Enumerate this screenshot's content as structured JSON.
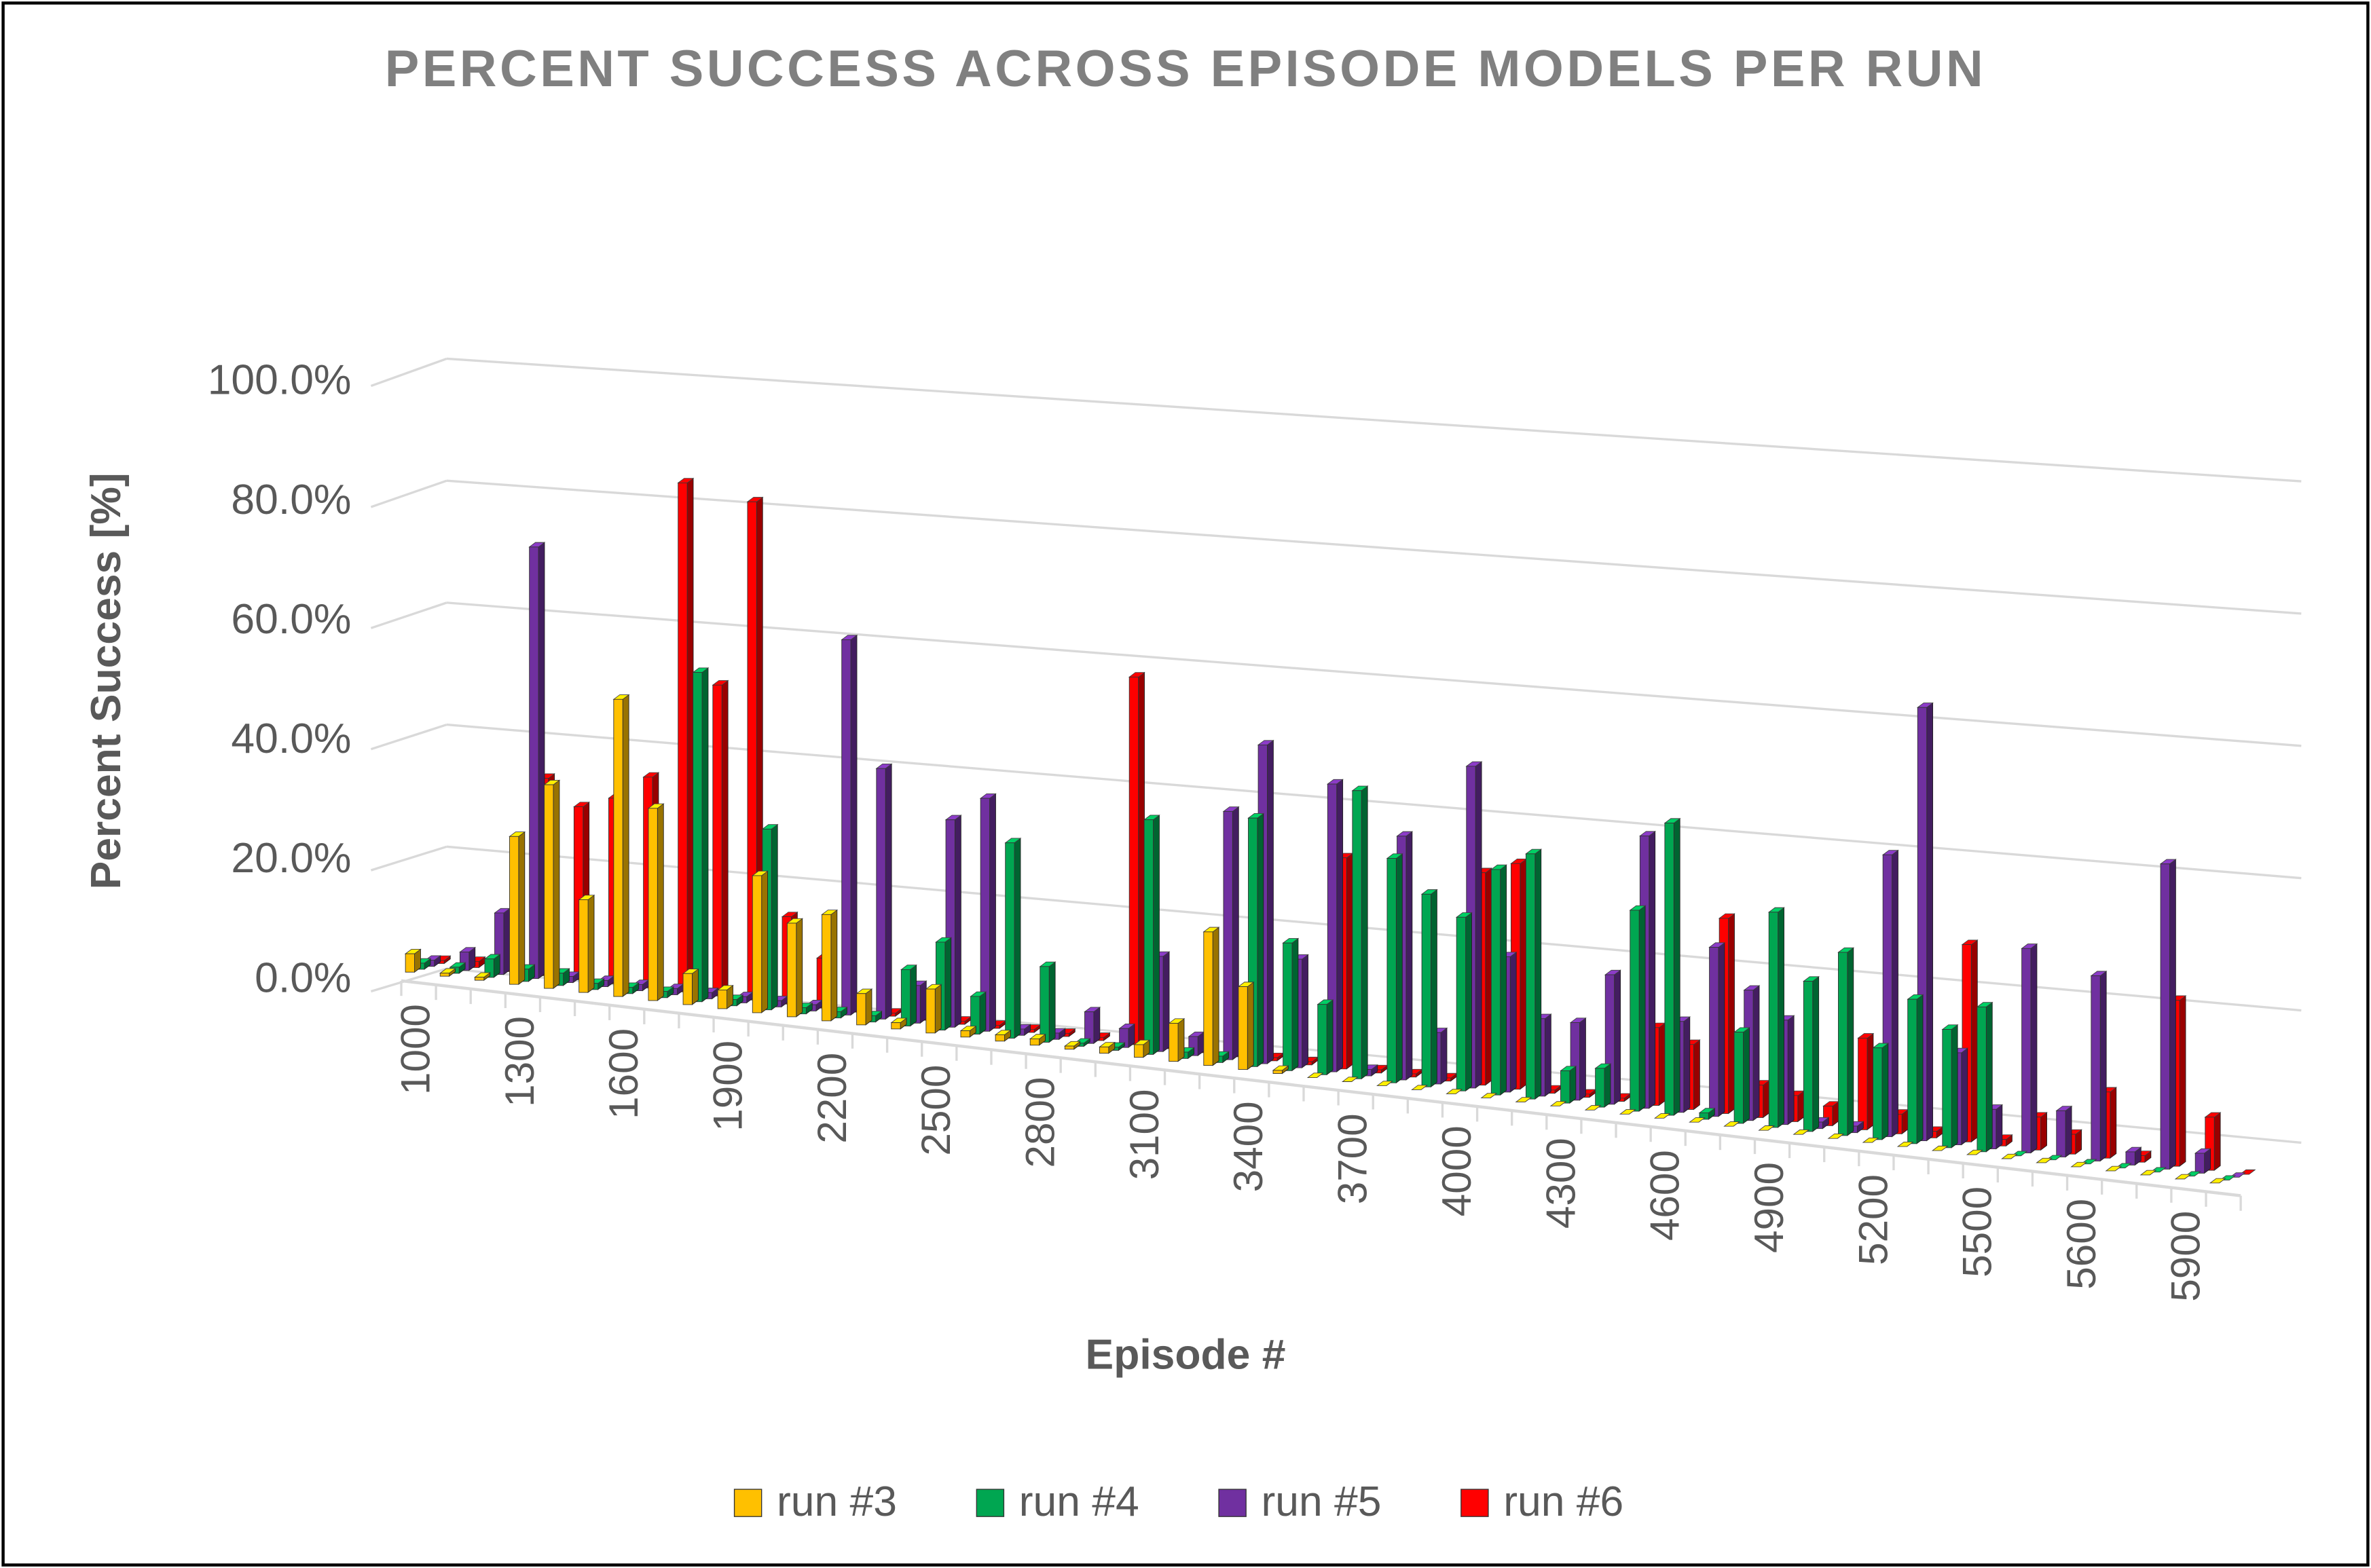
{
  "chart_data": {
    "type": "bar3d",
    "title": "PERCENT SUCCESS ACROSS EPISODE MODELS PER RUN",
    "x_label": "Episode #",
    "y_label": "Percent Success [%]",
    "categories": [
      "1000",
      null,
      null,
      "1300",
      null,
      null,
      "1600",
      null,
      null,
      "1900",
      null,
      null,
      "2200",
      null,
      null,
      "2500",
      null,
      null,
      "2800",
      null,
      null,
      "3100",
      null,
      null,
      "3400",
      null,
      null,
      "3700",
      null,
      null,
      "4000",
      null,
      null,
      "4300",
      null,
      null,
      "4600",
      null,
      null,
      "4900",
      null,
      null,
      "5200",
      null,
      null,
      "5500",
      null,
      null,
      "5600",
      null,
      null,
      "5900",
      null
    ],
    "series": [
      {
        "name": "run #3",
        "color": "#FFC000",
        "values": [
          3,
          0.5,
          0.5,
          24,
          33,
          15,
          48,
          31,
          5,
          3,
          22,
          15,
          17,
          5,
          1,
          7,
          1,
          1,
          1,
          0.5,
          1,
          2,
          6,
          21,
          13,
          0.5,
          0,
          0,
          0,
          0,
          0,
          0,
          0,
          0,
          0,
          0,
          0,
          0,
          0,
          0,
          0,
          0,
          0,
          0,
          0,
          0,
          0,
          0,
          0,
          0,
          0,
          0,
          0
        ]
      },
      {
        "name": "run #4",
        "color": "#00A651",
        "values": [
          1,
          1,
          3,
          2,
          2,
          1,
          1,
          1,
          53,
          1,
          29,
          1,
          1,
          1,
          9,
          14,
          6,
          31,
          12,
          0.5,
          0.5,
          37,
          1,
          1,
          39,
          20,
          11,
          45,
          35,
          30,
          27,
          35,
          38,
          5,
          6,
          31,
          45,
          1,
          14,
          33,
          23,
          28,
          14,
          22,
          18,
          22,
          0,
          0,
          0,
          0,
          0,
          0,
          0
        ]
      },
      {
        "name": "run #5",
        "color": "#7030A0",
        "values": [
          1,
          3,
          10,
          70,
          1,
          1,
          1,
          1,
          1,
          1,
          1,
          1,
          60,
          40,
          6,
          33,
          37,
          1,
          1,
          5,
          3,
          15,
          3,
          39,
          50,
          17,
          45,
          1,
          38,
          8,
          50,
          21,
          12,
          12,
          20,
          42,
          14,
          26,
          20,
          16,
          1,
          1,
          43,
          66,
          14,
          6,
          31,
          7,
          28,
          2,
          46,
          3,
          0
        ]
      },
      {
        "name": "run #6",
        "color": "#FF0000",
        "values": [
          0.5,
          1,
          1,
          32,
          28,
          30,
          34,
          82,
          50,
          80,
          14,
          8,
          0.5,
          0.5,
          0.5,
          0.5,
          0.5,
          0.5,
          0.5,
          0.5,
          58,
          0.5,
          0.5,
          0.5,
          0.5,
          0.5,
          33,
          0.5,
          0.5,
          0.5,
          33,
          35,
          0.5,
          0.5,
          0.5,
          12,
          10,
          30,
          5,
          4,
          3,
          14,
          3,
          1,
          30,
          1,
          5,
          3,
          10,
          1,
          25,
          8,
          0
        ]
      }
    ],
    "ylim": [
      0,
      100
    ],
    "yticks": [
      {
        "value": 0,
        "label": "0.0%"
      },
      {
        "value": 20,
        "label": "20.0%"
      },
      {
        "value": 40,
        "label": "40.0%"
      },
      {
        "value": 60,
        "label": "60.0%"
      },
      {
        "value": 80,
        "label": "80.0%"
      },
      {
        "value": 100,
        "label": "100.0%"
      }
    ],
    "grid": true,
    "legend": "bottom"
  }
}
